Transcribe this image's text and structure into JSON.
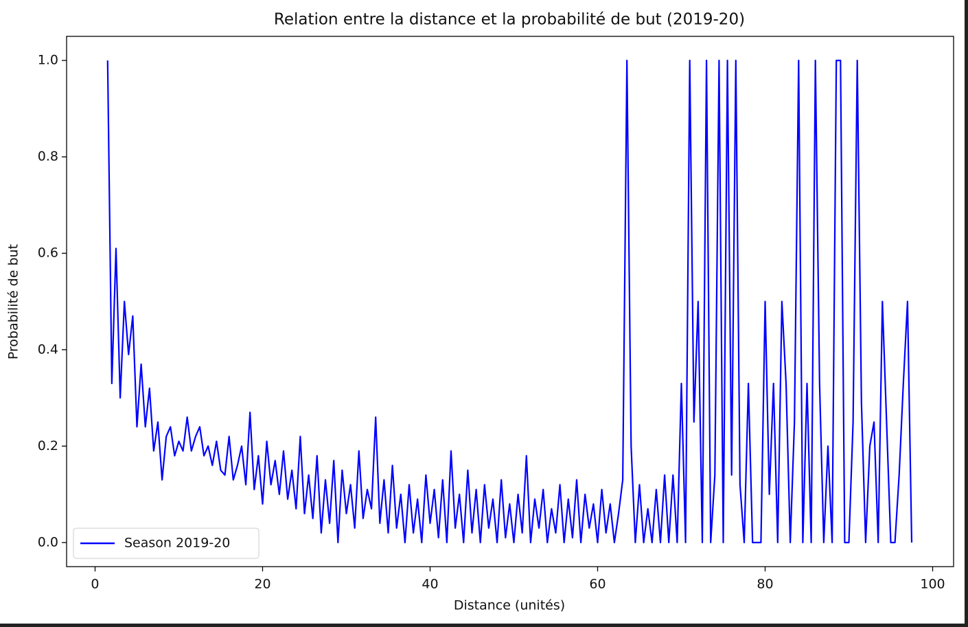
{
  "chart_data": {
    "type": "line",
    "title": "Relation entre la distance et la probabilité de but (2019-20)",
    "xlabel": "Distance (unités)",
    "ylabel": "Probabilité de but",
    "xlim": [
      -3.4,
      102.5
    ],
    "ylim": [
      -0.05,
      1.05
    ],
    "xticks": [
      0,
      20,
      40,
      60,
      80,
      100
    ],
    "yticks": [
      {
        "value": 0,
        "label": "0.0"
      },
      0.2,
      0.4,
      0.6,
      0.8,
      {
        "value": 1,
        "label": "1.0"
      }
    ],
    "legend": "lower left",
    "x": [
      1.5,
      2.0,
      2.5,
      3.0,
      3.5,
      4.0,
      4.5,
      5.0,
      5.5,
      6.0,
      6.5,
      7.0,
      7.5,
      8.0,
      8.5,
      9.0,
      9.5,
      10.0,
      10.5,
      11.0,
      11.5,
      12.0,
      12.5,
      13.0,
      13.5,
      14.0,
      14.5,
      15.0,
      15.5,
      16.0,
      16.5,
      17.0,
      17.5,
      18.0,
      18.5,
      19.0,
      19.5,
      20.0,
      20.5,
      21.0,
      21.5,
      22.0,
      22.5,
      23.0,
      23.5,
      24.0,
      24.5,
      25.0,
      25.5,
      26.0,
      26.5,
      27.0,
      27.5,
      28.0,
      28.5,
      29.0,
      29.5,
      30.0,
      30.5,
      31.0,
      31.5,
      32.0,
      32.5,
      33.0,
      33.5,
      34.0,
      34.5,
      35.0,
      35.5,
      36.0,
      36.5,
      37.0,
      37.5,
      38.0,
      38.5,
      39.0,
      39.5,
      40.0,
      40.5,
      41.0,
      41.5,
      42.0,
      42.5,
      43.0,
      43.5,
      44.0,
      44.5,
      45.0,
      45.5,
      46.0,
      46.5,
      47.0,
      47.5,
      48.0,
      48.5,
      49.0,
      49.5,
      50.0,
      50.5,
      51.0,
      51.5,
      52.0,
      52.5,
      53.0,
      53.5,
      54.0,
      54.5,
      55.0,
      55.5,
      56.0,
      56.5,
      57.0,
      57.5,
      58.0,
      58.5,
      59.0,
      59.5,
      60.0,
      60.5,
      61.0,
      61.5,
      62.0,
      62.5,
      63.0,
      63.5,
      64.0,
      64.5,
      65.0,
      65.5,
      66.0,
      66.5,
      67.0,
      67.5,
      68.0,
      68.5,
      69.0,
      69.5,
      70.0,
      70.5,
      71.0,
      71.5,
      72.0,
      72.5,
      73.0,
      73.5,
      74.0,
      74.5,
      75.0,
      75.5,
      76.0,
      76.5,
      77.0,
      77.5,
      78.0,
      78.5,
      79.0,
      79.5,
      80.0,
      80.5,
      81.0,
      81.5,
      82.0,
      82.5,
      83.0,
      83.5,
      84.0,
      84.5,
      85.0,
      85.5,
      86.0,
      86.5,
      87.0,
      87.5,
      88.0,
      88.5,
      89.0,
      89.5,
      90.0,
      90.5,
      91.0,
      91.5,
      92.0,
      92.5,
      93.0,
      93.5,
      94.0,
      94.5,
      95.0,
      95.5,
      96.0,
      96.5,
      97.0,
      97.5
    ],
    "series": [
      {
        "name": "Season 2019-20",
        "color": "#0000ff",
        "values": [
          1,
          0.33,
          0.61,
          0.3,
          0.5,
          0.39,
          0.47,
          0.24,
          0.37,
          0.24,
          0.32,
          0.19,
          0.25,
          0.13,
          0.22,
          0.24,
          0.18,
          0.21,
          0.19,
          0.26,
          0.19,
          0.22,
          0.24,
          0.18,
          0.2,
          0.16,
          0.21,
          0.15,
          0.14,
          0.22,
          0.13,
          0.16,
          0.2,
          0.12,
          0.27,
          0.11,
          0.18,
          0.08,
          0.21,
          0.12,
          0.17,
          0.1,
          0.19,
          0.09,
          0.15,
          0.07,
          0.22,
          0.06,
          0.14,
          0.05,
          0.18,
          0.02,
          0.13,
          0.04,
          0.17,
          0,
          0.15,
          0.06,
          0.12,
          0.03,
          0.19,
          0.05,
          0.11,
          0.07,
          0.26,
          0.04,
          0.13,
          0.02,
          0.16,
          0.03,
          0.1,
          0,
          0.12,
          0.02,
          0.09,
          0,
          0.14,
          0.04,
          0.11,
          0.01,
          0.13,
          0,
          0.19,
          0.03,
          0.1,
          0,
          0.15,
          0.02,
          0.11,
          0,
          0.12,
          0.03,
          0.09,
          0,
          0.13,
          0.01,
          0.08,
          0,
          0.1,
          0.02,
          0.18,
          0,
          0.09,
          0.03,
          0.11,
          0,
          0.07,
          0.02,
          0.12,
          0,
          0.09,
          0.01,
          0.13,
          0,
          0.1,
          0.03,
          0.08,
          0,
          0.11,
          0.02,
          0.08,
          0,
          0.06,
          0.13,
          1,
          0.2,
          0,
          0.12,
          0,
          0.07,
          0,
          0.11,
          0,
          0.14,
          0,
          0.14,
          0,
          0.33,
          0,
          1,
          0.25,
          0.5,
          0,
          1,
          0,
          0.14,
          1,
          0,
          1,
          0.14,
          1,
          0.12,
          0,
          0.33,
          0,
          0,
          0,
          0.5,
          0.1,
          0.33,
          0,
          0.5,
          0.33,
          0,
          0.25,
          1,
          0,
          0.33,
          0,
          1,
          0.33,
          0,
          0.2,
          0,
          1,
          1,
          0,
          0,
          0.25,
          1,
          0.29,
          0,
          0.2,
          0.25,
          0,
          0.5,
          0.25,
          0,
          0,
          0.14,
          0.33,
          0.5,
          0
        ]
      }
    ]
  }
}
